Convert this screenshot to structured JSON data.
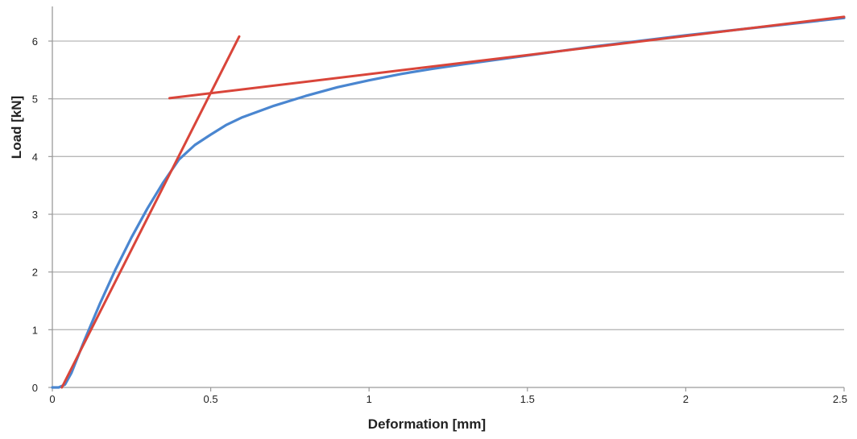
{
  "chart_data": {
    "type": "line",
    "title": "",
    "xlabel": "Deformation [mm]",
    "ylabel": "Load [kN]",
    "xlim": [
      0,
      2.5
    ],
    "ylim": [
      0,
      6.5
    ],
    "xticks": [
      0,
      0.5,
      1,
      1.5,
      2,
      2.5
    ],
    "xtick_labels": [
      "0",
      "0.5",
      "1",
      "1.5",
      "2",
      "2.5"
    ],
    "yticks": [
      0,
      1,
      2,
      3,
      4,
      5,
      6
    ],
    "ytick_labels": [
      "0",
      "1",
      "2",
      "3",
      "4",
      "5",
      "6"
    ],
    "grid": "horizontal",
    "legend": "none",
    "series": [
      {
        "color": "#4a86d0",
        "x": [
          0,
          0.02,
          0.04,
          0.06,
          0.1,
          0.15,
          0.2,
          0.25,
          0.3,
          0.35,
          0.4,
          0.45,
          0.5,
          0.55,
          0.6,
          0.7,
          0.8,
          0.9,
          1.0,
          1.1,
          1.2,
          1.3,
          1.5,
          1.7,
          2.0,
          2.25,
          2.5
        ],
        "y": [
          0,
          0,
          0.05,
          0.25,
          0.8,
          1.45,
          2.05,
          2.6,
          3.1,
          3.55,
          3.95,
          4.2,
          4.38,
          4.55,
          4.68,
          4.88,
          5.05,
          5.2,
          5.32,
          5.43,
          5.52,
          5.6,
          5.75,
          5.9,
          6.1,
          6.25,
          6.4
        ]
      },
      {
        "color": "#d9453a",
        "x": [
          0.03,
          0.59
        ],
        "y": [
          0,
          6.08
        ]
      },
      {
        "color": "#d9453a",
        "x": [
          0.37,
          2.5
        ],
        "y": [
          5.01,
          6.42
        ]
      }
    ]
  }
}
